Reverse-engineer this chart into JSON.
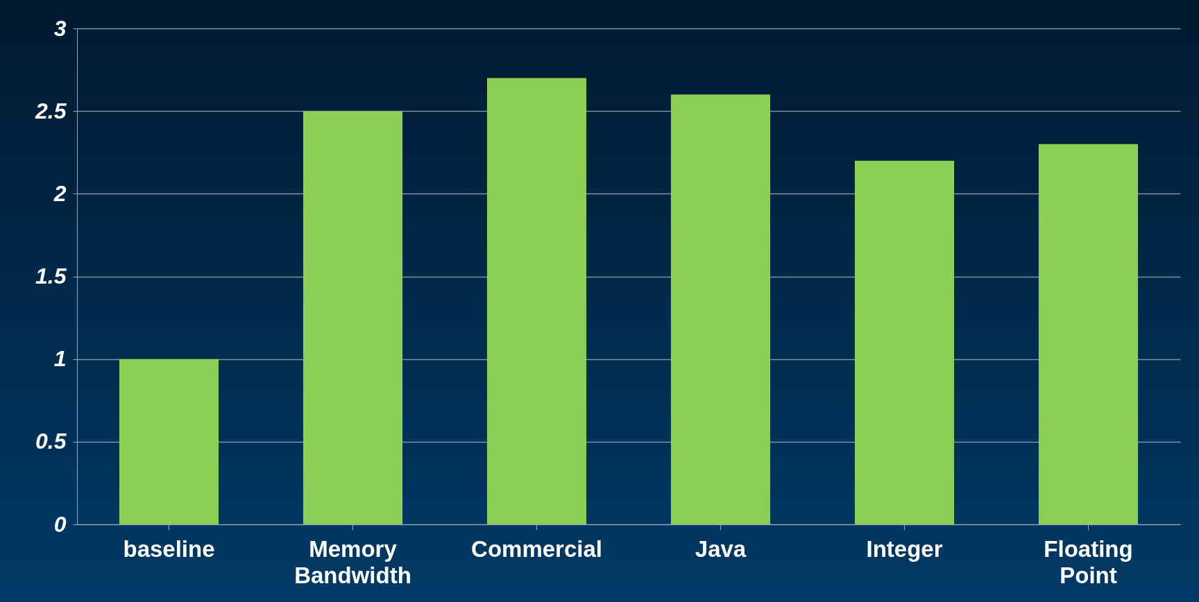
{
  "chart_data": {
    "type": "bar",
    "categories": [
      "baseline",
      "Memory Bandwidth",
      "Commercial",
      "Java",
      "Integer",
      "Floating Point"
    ],
    "values": [
      1,
      2.5,
      2.7,
      2.6,
      2.2,
      2.3
    ],
    "color": "#8ccf55",
    "ylim": [
      0,
      3
    ],
    "yticks": [
      0,
      0.5,
      1,
      1.5,
      2,
      2.5,
      3
    ],
    "grid": "y"
  }
}
